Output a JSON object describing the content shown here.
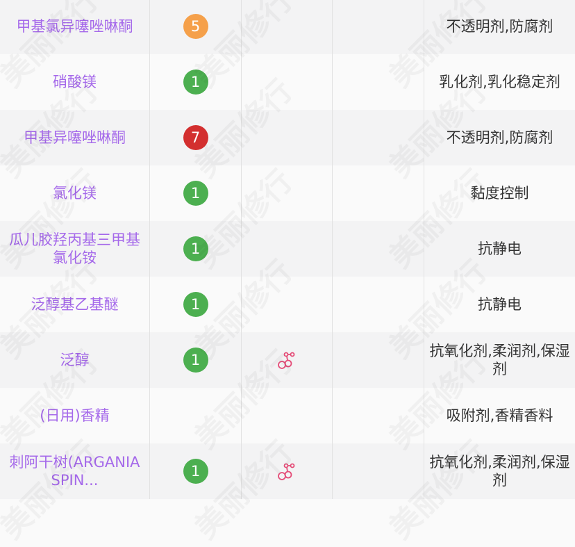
{
  "colors": {
    "safe": "#4caf50",
    "medium": "#f5a04a",
    "high": "#d32f2f",
    "name": "#a569ea",
    "icon": "#e44d78"
  },
  "rows": [
    {
      "name": "甲基氯异噻唑啉酮",
      "score": "5",
      "level": "medium",
      "icon": false,
      "function": "不透明剂,防腐剂"
    },
    {
      "name": "硝酸镁",
      "score": "1",
      "level": "safe",
      "icon": false,
      "function": "乳化剂,乳化稳定剂"
    },
    {
      "name": "甲基异噻唑啉酮",
      "score": "7",
      "level": "high",
      "icon": false,
      "function": "不透明剂,防腐剂"
    },
    {
      "name": "氯化镁",
      "score": "1",
      "level": "safe",
      "icon": false,
      "function": "黏度控制"
    },
    {
      "name": "瓜儿胶羟丙基三甲基氯化铵",
      "score": "1",
      "level": "safe",
      "icon": false,
      "function": "抗静电"
    },
    {
      "name": "泛醇基乙基醚",
      "score": "1",
      "level": "safe",
      "icon": false,
      "function": "抗静电"
    },
    {
      "name": "泛醇",
      "score": "1",
      "level": "safe",
      "icon": true,
      "function": "抗氧化剂,柔润剂,保湿剂"
    },
    {
      "name": "(日用)香精",
      "score": "",
      "level": "",
      "icon": false,
      "function": "吸附剂,香精香料"
    },
    {
      "name": "刺阿干树(ARGANIA SPIN...",
      "score": "1",
      "level": "safe",
      "icon": true,
      "function": "抗氧化剂,柔润剂,保湿剂"
    }
  ],
  "watermark": "美丽修行"
}
